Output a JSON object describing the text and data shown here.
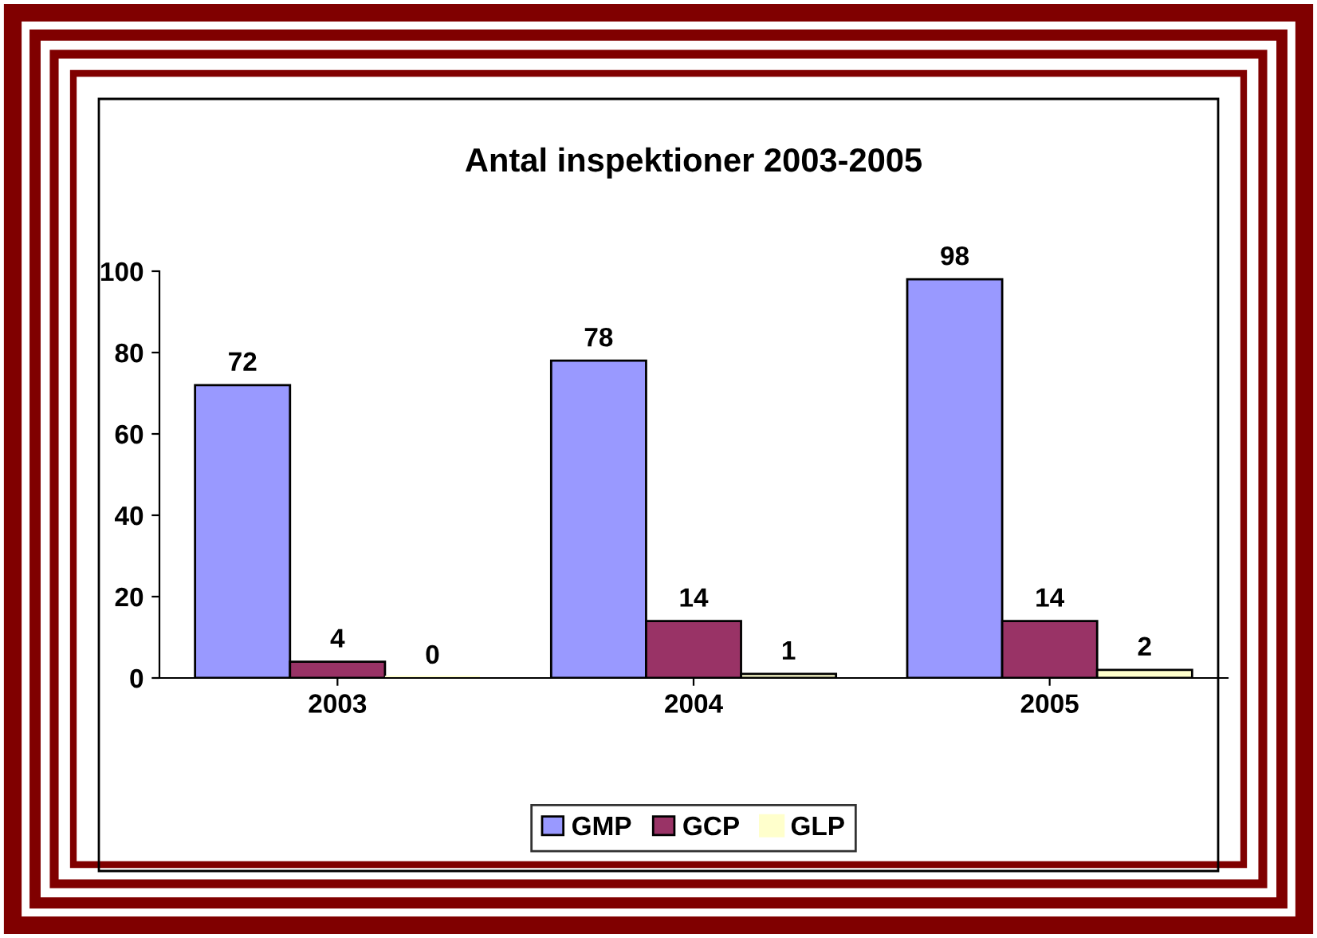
{
  "chart_data": {
    "type": "bar",
    "title": "Antal inspektioner 2003-2005",
    "categories": [
      "2003",
      "2004",
      "2005"
    ],
    "series": [
      {
        "name": "GMP",
        "color": "#9999ff",
        "values": [
          72,
          78,
          98
        ]
      },
      {
        "name": "GCP",
        "color": "#993366",
        "values": [
          4,
          14,
          14
        ]
      },
      {
        "name": "GLP",
        "color": "#ffffcc",
        "values": [
          0,
          1,
          2
        ]
      }
    ],
    "ylim": [
      0,
      100
    ],
    "yticks": [
      0,
      20,
      40,
      60,
      80,
      100
    ],
    "grid": false,
    "legend": "bottom",
    "data_labels": true
  }
}
